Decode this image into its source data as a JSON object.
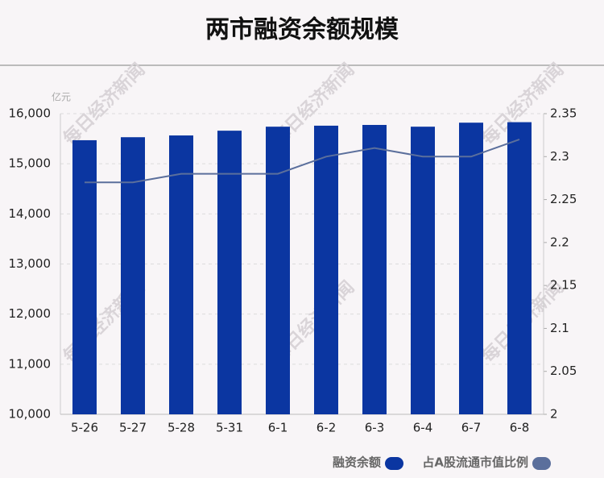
{
  "chart_data": {
    "type": "bar",
    "title": "两市融资余额规模",
    "y_unit": "亿元",
    "watermark": "每日经济新闻",
    "categories": [
      "5-26",
      "5-27",
      "5-28",
      "5-31",
      "6-1",
      "6-2",
      "6-3",
      "6-4",
      "6-7",
      "6-8"
    ],
    "series": [
      {
        "name": "融资余额",
        "type": "bar",
        "color": "#0b36a1",
        "values": [
          15470,
          15530,
          15565,
          15660,
          15740,
          15760,
          15775,
          15740,
          15820,
          15830
        ]
      },
      {
        "name": "占A股流通市值比例",
        "type": "line",
        "axis": "y2",
        "color": "#5b6f9c",
        "values": [
          2.27,
          2.27,
          2.28,
          2.28,
          2.28,
          2.3,
          2.31,
          2.3,
          2.3,
          2.32
        ]
      }
    ],
    "ylim": [
      10000,
      16000
    ],
    "yticks": [
      {
        "value": 10000,
        "label": "10,000"
      },
      {
        "value": 11000,
        "label": "11,000"
      },
      {
        "value": 12000,
        "label": "12,000"
      },
      {
        "value": 13000,
        "label": "13,000"
      },
      {
        "value": 14000,
        "label": "14,000"
      },
      {
        "value": 15000,
        "label": "15,000"
      },
      {
        "value": 16000,
        "label": "16,000"
      }
    ],
    "y2lim": [
      2,
      2.35
    ],
    "y2ticks": [
      2,
      2.05,
      2.1,
      2.15,
      2.2,
      2.25,
      2.3,
      2.35
    ],
    "grid": true,
    "legend": "bottom"
  }
}
